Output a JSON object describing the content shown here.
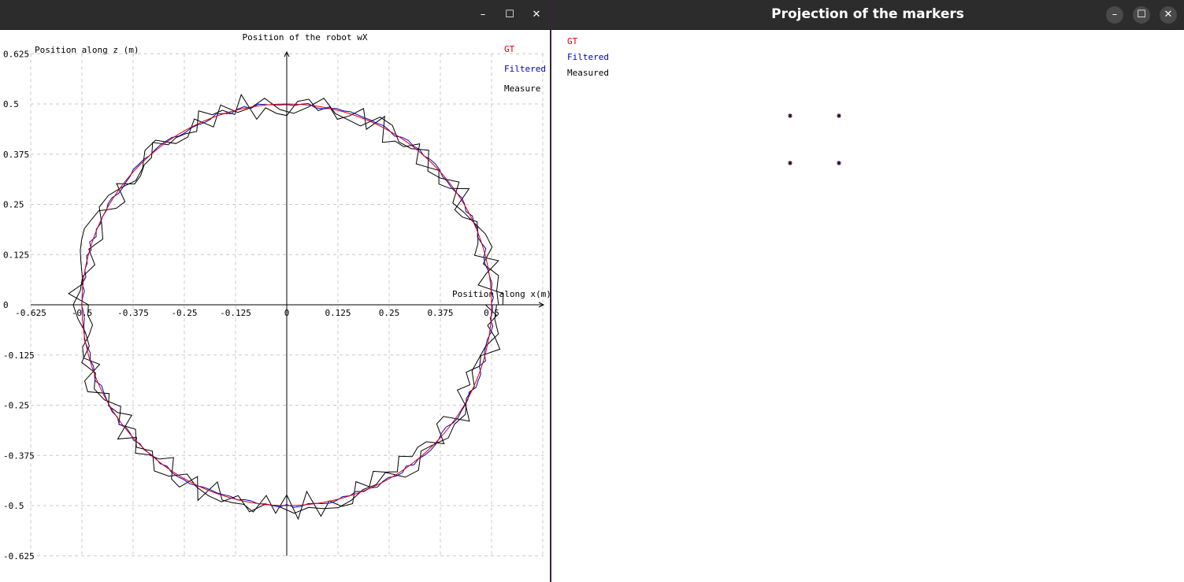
{
  "left_window": {
    "title": "",
    "controls": {
      "minimize": "–",
      "maximize": "☐",
      "close": "✕"
    }
  },
  "right_window": {
    "title": "Projection of the markers",
    "controls": {
      "minimize": "–",
      "maximize": "☐",
      "close": "✕"
    },
    "legend": [
      {
        "label": "GT",
        "color": "#e00000"
      },
      {
        "label": "Filtered",
        "color": "#0000c0"
      },
      {
        "label": "Measured",
        "color": "#000000"
      }
    ],
    "markers": [
      {
        "u": 1,
        "v": 1
      },
      {
        "u": 2,
        "v": 1
      },
      {
        "u": 1,
        "v": 2
      },
      {
        "u": 2,
        "v": 2
      }
    ]
  },
  "colors": {
    "gt": "#e00000",
    "filtered": "#0000c0",
    "measured": "#000000",
    "grid": "#c8c8c8",
    "titlebar": "#2c2c2c"
  },
  "chart_data": {
    "type": "line",
    "title": "Position of the robot wX",
    "xlabel": "Position along x(m)",
    "ylabel": "Position along z (m)",
    "xlim": [
      -0.625,
      0.625
    ],
    "ylim": [
      -0.625,
      0.625
    ],
    "x_ticks": [
      "-0.625",
      "-0.5",
      "-0.375",
      "-0.25",
      "-0.125",
      "0",
      "0.125",
      "0.25",
      "0.375",
      "0.5"
    ],
    "y_ticks": [
      "0.625",
      "0.5",
      "0.375",
      "0.25",
      "0.125",
      "0",
      "-0.125",
      "-0.25",
      "-0.375",
      "-0.5",
      "-0.625"
    ],
    "grid": true,
    "legend": "top-right",
    "series": [
      {
        "name": "GT",
        "color": "#e00000",
        "shape": "circle",
        "radius": 0.5
      },
      {
        "name": "Filtered",
        "color": "#0000c0",
        "shape": "circle",
        "radius": 0.5
      },
      {
        "name": "Measure",
        "color": "#000000",
        "shape": "circle",
        "radius": 0.5
      }
    ]
  }
}
